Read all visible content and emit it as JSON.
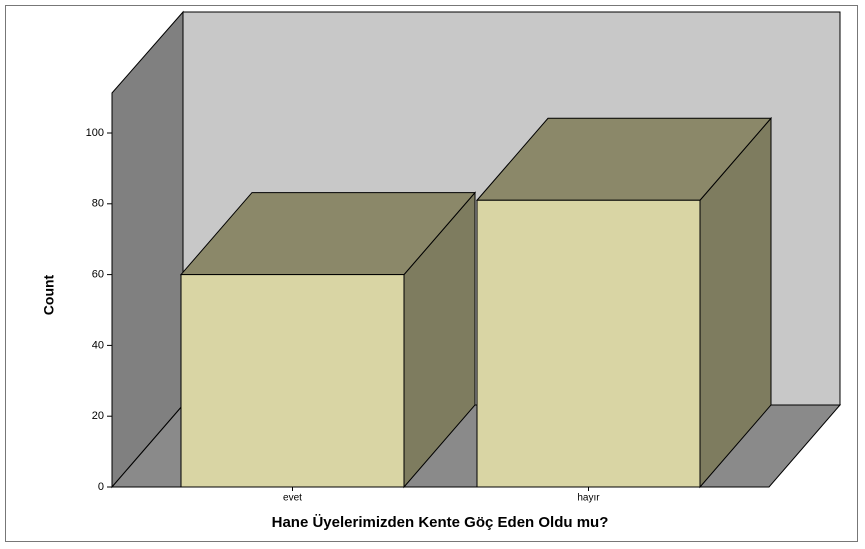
{
  "chart_data": {
    "type": "bar3d",
    "x_label": "Hane Üyelerimizden Kente Göç Eden Oldu mu?",
    "y_label": "Count",
    "categories": [
      "evet",
      "hayır"
    ],
    "values": [
      60,
      81
    ],
    "color": "#d9d5a4",
    "ylim": [
      0,
      100
    ],
    "yticks": [
      0,
      20,
      40,
      60,
      80,
      100
    ]
  }
}
